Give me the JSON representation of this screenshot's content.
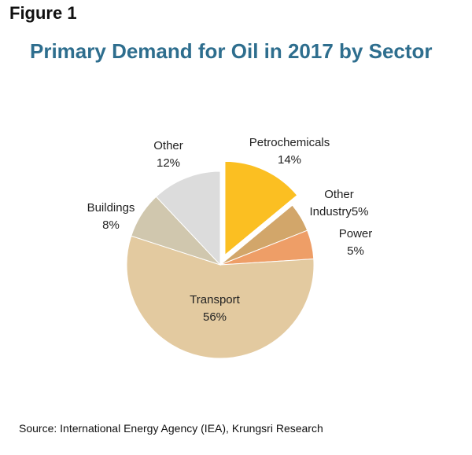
{
  "figure_label": "Figure 1",
  "chart_data": {
    "type": "pie",
    "title": "Primary Demand for Oil in 2017 by Sector",
    "slices": [
      {
        "name": "Petrochemicals",
        "value": 14,
        "label": "14%",
        "color": "#fbbf22",
        "exploded": true
      },
      {
        "name": "Other Industry",
        "value": 5,
        "label": "5%",
        "color": "#d2a66a",
        "exploded": false
      },
      {
        "name": "Power",
        "value": 5,
        "label": "5%",
        "color": "#ee9e67",
        "exploded": false
      },
      {
        "name": "Transport",
        "value": 56,
        "label": "56%",
        "color": "#e3caa0",
        "exploded": false
      },
      {
        "name": "Buildings",
        "value": 8,
        "label": "8%",
        "color": "#d0c7ae",
        "exploded": false
      },
      {
        "name": "Other",
        "value": 12,
        "label": "12%",
        "color": "#dcdcdc",
        "exploded": false
      }
    ]
  },
  "source": "Source: International Energy Agency (IEA), Krungsri Research"
}
